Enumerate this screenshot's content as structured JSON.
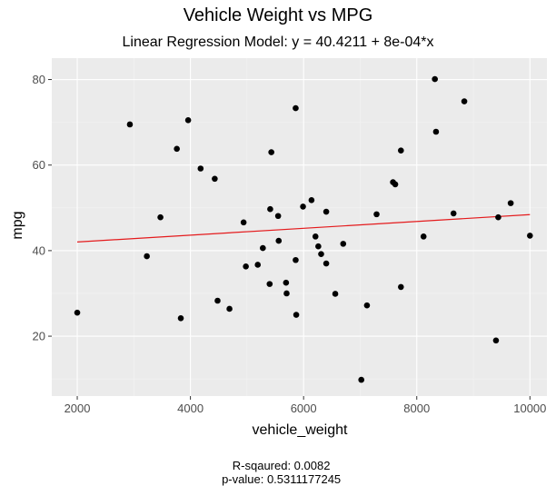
{
  "chart_data": {
    "type": "scatter",
    "title": "Vehicle Weight vs MPG",
    "subtitle": "Linear Regression Model: y = 40.4211 + 8e-04*x",
    "xlabel": "vehicle_weight",
    "ylabel": "mpg",
    "xlim": [
      1550,
      10300
    ],
    "ylim": [
      6,
      85
    ],
    "x_ticks": [
      2000,
      4000,
      6000,
      8000,
      10000
    ],
    "y_ticks": [
      20,
      40,
      60,
      80
    ],
    "x_tick_labels": [
      "2000",
      "4000",
      "6000",
      "8000",
      "10000"
    ],
    "y_tick_labels": [
      "20",
      "40",
      "60",
      "80"
    ],
    "grid": true,
    "colors": {
      "panel": "#ebebeb",
      "grid_major": "#ffffff",
      "grid_minor": "#f3f3f3",
      "points": "#000000",
      "regression_line": "#e41a1c"
    },
    "regression_line": {
      "intercept": 40.4211,
      "slope": 0.0008,
      "x_range": [
        2000,
        10000
      ]
    },
    "points": [
      {
        "x": 2000,
        "y": 25.5
      },
      {
        "x": 2930,
        "y": 69.5
      },
      {
        "x": 3230,
        "y": 38.7
      },
      {
        "x": 3470,
        "y": 47.8
      },
      {
        "x": 3760,
        "y": 63.8
      },
      {
        "x": 3830,
        "y": 24.2
      },
      {
        "x": 3960,
        "y": 70.5
      },
      {
        "x": 4180,
        "y": 59.2
      },
      {
        "x": 4430,
        "y": 56.8
      },
      {
        "x": 4480,
        "y": 28.3
      },
      {
        "x": 4690,
        "y": 26.4
      },
      {
        "x": 4940,
        "y": 46.6
      },
      {
        "x": 4980,
        "y": 36.3
      },
      {
        "x": 5190,
        "y": 36.7
      },
      {
        "x": 5280,
        "y": 40.6
      },
      {
        "x": 5400,
        "y": 32.2
      },
      {
        "x": 5410,
        "y": 49.7
      },
      {
        "x": 5430,
        "y": 63.0
      },
      {
        "x": 5550,
        "y": 48.1
      },
      {
        "x": 5560,
        "y": 42.3
      },
      {
        "x": 5690,
        "y": 32.5
      },
      {
        "x": 5700,
        "y": 30.0
      },
      {
        "x": 5860,
        "y": 73.3
      },
      {
        "x": 5860,
        "y": 37.8
      },
      {
        "x": 5870,
        "y": 25.0
      },
      {
        "x": 5990,
        "y": 50.3
      },
      {
        "x": 6140,
        "y": 51.8
      },
      {
        "x": 6210,
        "y": 43.3
      },
      {
        "x": 6260,
        "y": 41.0
      },
      {
        "x": 6310,
        "y": 39.2
      },
      {
        "x": 6400,
        "y": 37.0
      },
      {
        "x": 6400,
        "y": 49.1
      },
      {
        "x": 6560,
        "y": 29.9
      },
      {
        "x": 6700,
        "y": 41.6
      },
      {
        "x": 7020,
        "y": 9.8
      },
      {
        "x": 7120,
        "y": 27.2
      },
      {
        "x": 7290,
        "y": 48.5
      },
      {
        "x": 7580,
        "y": 56.0
      },
      {
        "x": 7620,
        "y": 55.5
      },
      {
        "x": 7720,
        "y": 31.5
      },
      {
        "x": 7720,
        "y": 63.4
      },
      {
        "x": 8120,
        "y": 43.3
      },
      {
        "x": 8320,
        "y": 80.1
      },
      {
        "x": 8340,
        "y": 67.8
      },
      {
        "x": 8650,
        "y": 48.7
      },
      {
        "x": 8840,
        "y": 74.9
      },
      {
        "x": 9400,
        "y": 19.0
      },
      {
        "x": 9440,
        "y": 47.8
      },
      {
        "x": 9660,
        "y": 51.1
      },
      {
        "x": 10000,
        "y": 43.5
      }
    ]
  },
  "footer": {
    "r_squared": "R-sqaured: 0.0082",
    "p_value": "p-value: 0.5311177245"
  }
}
